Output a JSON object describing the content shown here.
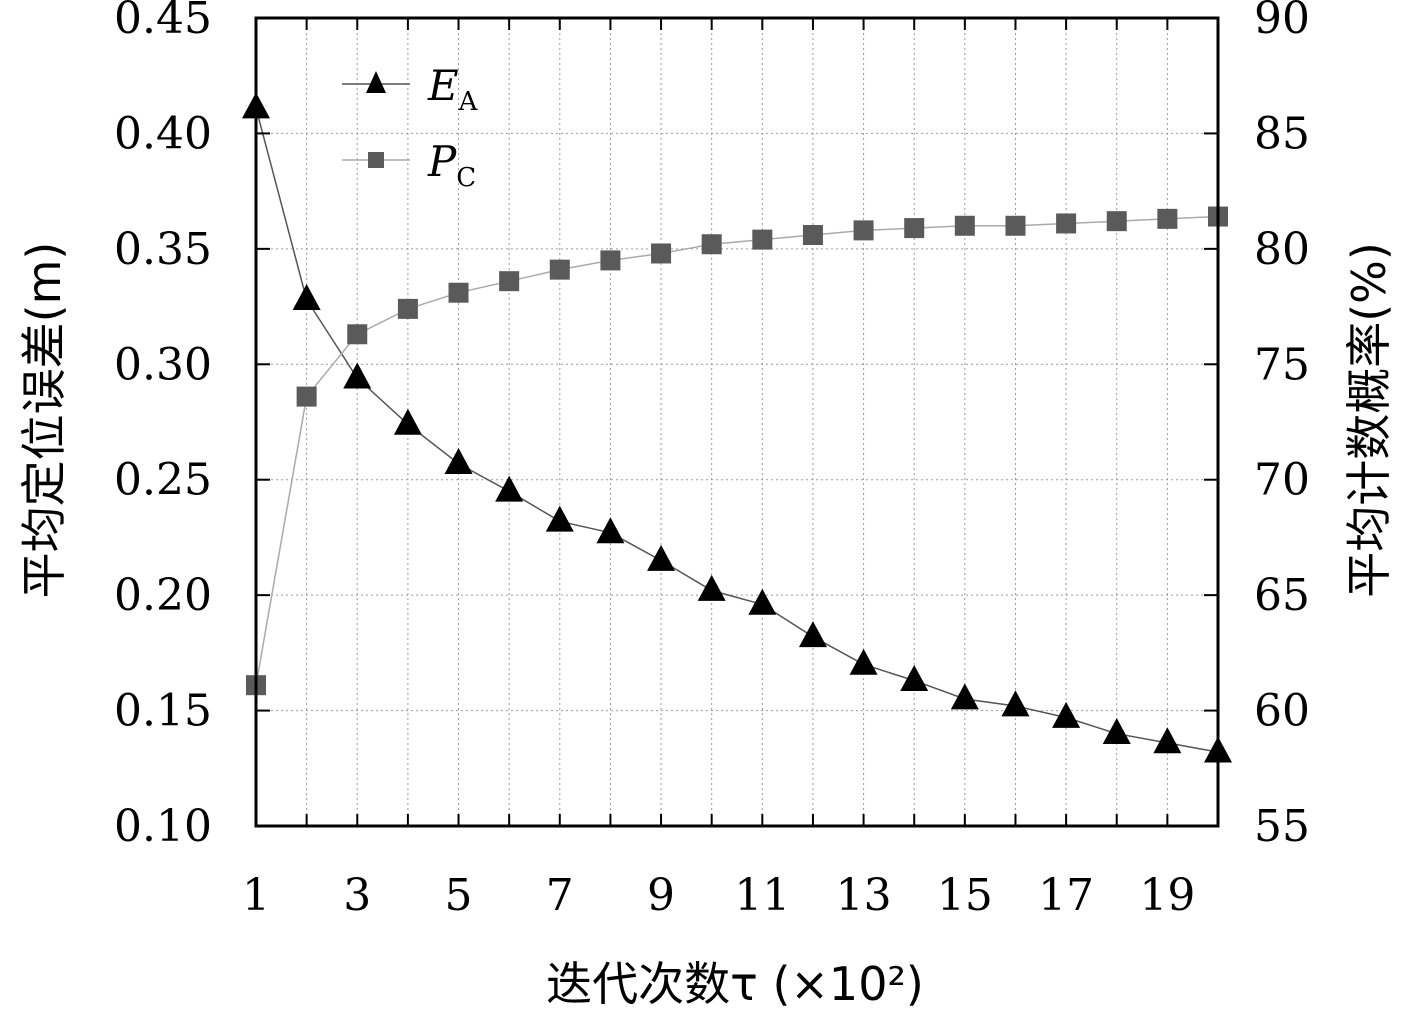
{
  "chart_data": {
    "type": "line",
    "title": "",
    "xlabel": "迭代次数τ (×10²)",
    "ylabel_left": "平均定位误差(m)",
    "ylabel_right": "平均计数概率(%)",
    "x": [
      1,
      2,
      3,
      4,
      5,
      6,
      7,
      8,
      9,
      10,
      11,
      12,
      13,
      14,
      15,
      16,
      17,
      18,
      19,
      20
    ],
    "xlim": [
      1,
      20
    ],
    "x_ticks": [
      1,
      3,
      5,
      7,
      9,
      11,
      13,
      15,
      17,
      19
    ],
    "ylim_left": [
      0.1,
      0.45
    ],
    "y_ticks_left": [
      "0.10",
      "0.15",
      "0.20",
      "0.25",
      "0.30",
      "0.35",
      "0.40",
      "0.45"
    ],
    "ylim_right": [
      55,
      90
    ],
    "y_ticks_right": [
      "55",
      "60",
      "65",
      "70",
      "75",
      "80",
      "85",
      "90"
    ],
    "grid": true,
    "legend_position": "top-left",
    "series": [
      {
        "name": "E",
        "name_sub": "A",
        "axis": "left",
        "marker": "triangle",
        "color": "#000000",
        "line_color": "#555555",
        "values": [
          0.411,
          0.328,
          0.294,
          0.274,
          0.257,
          0.245,
          0.232,
          0.227,
          0.215,
          0.202,
          0.196,
          0.182,
          0.17,
          0.163,
          0.155,
          0.152,
          0.147,
          0.14,
          0.136,
          0.132
        ]
      },
      {
        "name": "P",
        "name_sub": "C",
        "axis": "right",
        "marker": "square",
        "color": "#5a5a5a",
        "line_color": "#aaaaaa",
        "values": [
          61.1,
          73.6,
          76.3,
          77.4,
          78.1,
          78.6,
          79.1,
          79.5,
          79.8,
          80.2,
          80.4,
          80.6,
          80.8,
          80.9,
          81.0,
          81.0,
          81.1,
          81.2,
          81.3,
          81.4
        ]
      }
    ]
  }
}
